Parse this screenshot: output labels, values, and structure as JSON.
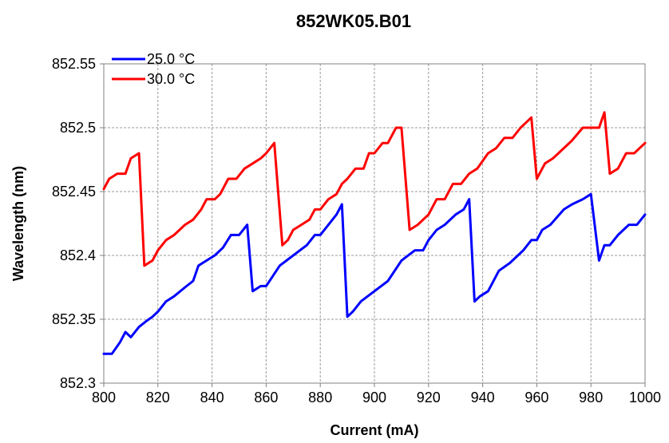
{
  "chart_data": {
    "type": "line",
    "title": "852WK05.B01",
    "xlabel": "Current (mA)",
    "ylabel": "Wavelength (nm)",
    "xlim": [
      800,
      1000
    ],
    "ylim": [
      852.3,
      852.55
    ],
    "xticks": [
      "800",
      "820",
      "840",
      "860",
      "880",
      "900",
      "920",
      "940",
      "960",
      "980",
      "1000"
    ],
    "yticks": [
      "852.3",
      "852.35",
      "852.4",
      "852.45",
      "852.5",
      "852.55"
    ],
    "grid": true,
    "legend_position": "top-left",
    "series": [
      {
        "name": "25.0 °C",
        "color": "#0000ff",
        "x": [
          800,
          803,
          806,
          808,
          810,
          813,
          816,
          818,
          820,
          823,
          826,
          830,
          833,
          835,
          838,
          841,
          844,
          847,
          850,
          853,
          855,
          858,
          860,
          865,
          870,
          875,
          878,
          880,
          883,
          886,
          888,
          890,
          892,
          895,
          900,
          905,
          910,
          915,
          918,
          920,
          923,
          926,
          930,
          933,
          935,
          937,
          939,
          942,
          946,
          950,
          955,
          958,
          960,
          962,
          965,
          970,
          973,
          977,
          980,
          983,
          985,
          987,
          990,
          994,
          997,
          1000
        ],
        "y": [
          852.323,
          852.323,
          852.332,
          852.34,
          852.336,
          852.344,
          852.349,
          852.352,
          852.356,
          852.364,
          852.368,
          852.375,
          852.38,
          852.392,
          852.396,
          852.4,
          852.406,
          852.416,
          852.416,
          852.424,
          852.372,
          852.376,
          852.376,
          852.392,
          852.4,
          852.408,
          852.416,
          852.416,
          852.424,
          852.432,
          852.44,
          852.352,
          852.356,
          852.364,
          852.372,
          852.38,
          852.396,
          852.404,
          852.404,
          852.412,
          852.42,
          852.424,
          852.432,
          852.436,
          852.444,
          852.364,
          852.368,
          852.372,
          852.388,
          852.394,
          852.404,
          852.412,
          852.412,
          852.42,
          852.424,
          852.436,
          852.44,
          852.444,
          852.448,
          852.396,
          852.408,
          852.408,
          852.416,
          852.424,
          852.424,
          852.432
        ]
      },
      {
        "name": "30.0 °C",
        "color": "#ff0000",
        "x": [
          800,
          802,
          805,
          808,
          810,
          813,
          815,
          818,
          820,
          823,
          826,
          830,
          833,
          836,
          838,
          841,
          843,
          846,
          849,
          852,
          855,
          858,
          860,
          863,
          866,
          868,
          870,
          873,
          876,
          878,
          880,
          883,
          886,
          888,
          890,
          893,
          896,
          898,
          900,
          903,
          905,
          908,
          910,
          913,
          916,
          918,
          920,
          923,
          926,
          929,
          932,
          935,
          938,
          942,
          945,
          948,
          951,
          954,
          958,
          960,
          963,
          966,
          970,
          973,
          977,
          980,
          983,
          985,
          987,
          990,
          993,
          996,
          1000
        ],
        "y": [
          852.452,
          852.46,
          852.464,
          852.464,
          852.476,
          852.48,
          852.392,
          852.396,
          852.404,
          852.412,
          852.416,
          852.424,
          852.428,
          852.436,
          852.444,
          852.444,
          852.448,
          852.46,
          852.46,
          852.468,
          852.472,
          852.476,
          852.48,
          852.488,
          852.408,
          852.412,
          852.42,
          852.424,
          852.428,
          852.436,
          852.436,
          852.444,
          852.448,
          852.456,
          852.46,
          852.468,
          852.468,
          852.48,
          852.48,
          852.488,
          852.488,
          852.5,
          852.5,
          852.42,
          852.424,
          852.428,
          852.432,
          852.444,
          852.444,
          852.456,
          852.456,
          852.464,
          852.468,
          852.48,
          852.484,
          852.492,
          852.492,
          852.5,
          852.508,
          852.46,
          852.472,
          852.476,
          852.484,
          852.49,
          852.5,
          852.5,
          852.5,
          852.512,
          852.464,
          852.468,
          852.48,
          852.48,
          852.488
        ]
      }
    ]
  }
}
